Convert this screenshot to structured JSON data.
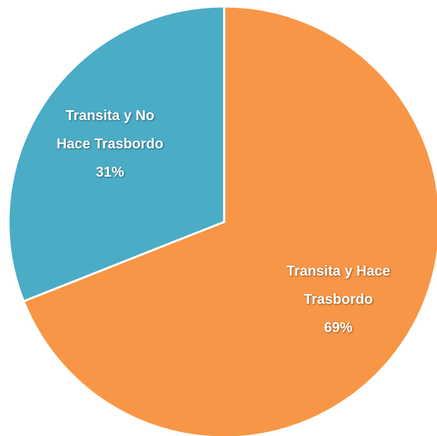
{
  "chart_data": {
    "type": "pie",
    "categories": [
      "Transita y Hace Trasbordo",
      "Transita y No Hace Trasbordo"
    ],
    "values": [
      69,
      31
    ],
    "value_labels": [
      "69%",
      "31%"
    ],
    "colors": [
      "#f79646",
      "#4bacc6"
    ]
  }
}
